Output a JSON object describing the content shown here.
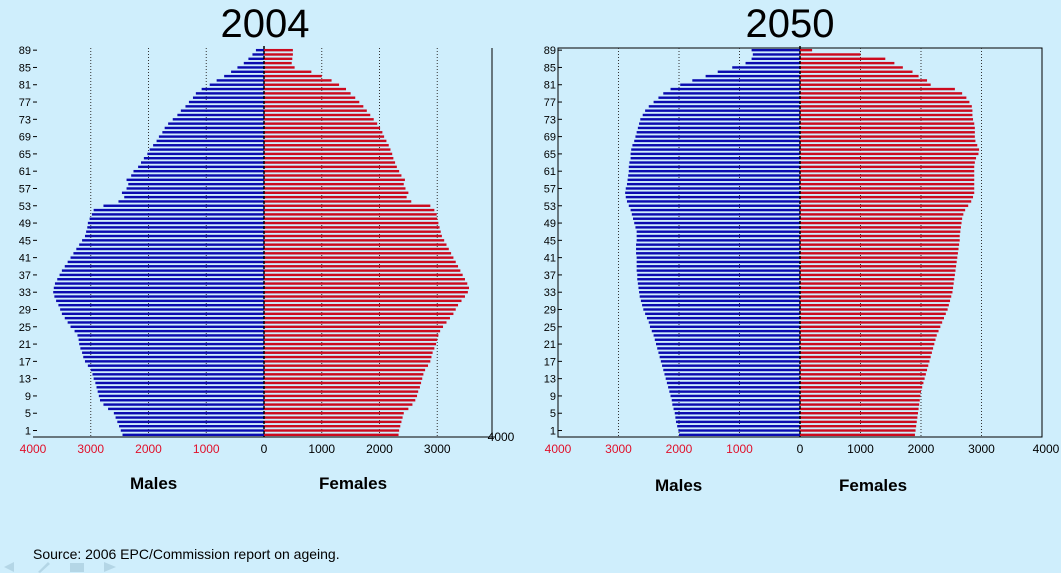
{
  "source": "Source: 2006 EPC/Commission report on ageing.",
  "chart_data": [
    {
      "type": "bar",
      "title": "2004",
      "orientation": "population-pyramid",
      "age_tick_labels": [
        "1",
        "5",
        "9",
        "13",
        "17",
        "21",
        "25",
        "29",
        "33",
        "37",
        "41",
        "45",
        "49",
        "53",
        "57",
        "61",
        "65",
        "69",
        "73",
        "77",
        "81",
        "85",
        "89"
      ],
      "left_axis_ticks": [
        "4000",
        "3000",
        "2000",
        "1000"
      ],
      "right_axis_ticks": [
        "0",
        "1000",
        "2000",
        "3000",
        "4000"
      ],
      "xlim": [
        0,
        4000
      ],
      "males_label": "Males",
      "females_label": "Females",
      "colors": {
        "males": "#0b0bb0",
        "females": "#cc0a1e",
        "left_tick": "#e0102a"
      },
      "series": [
        {
          "name": "Males",
          "ages": [
            0,
            1,
            2,
            3,
            4,
            5,
            6,
            7,
            8,
            9,
            10,
            11,
            12,
            13,
            14,
            15,
            16,
            17,
            18,
            19,
            20,
            21,
            22,
            23,
            24,
            25,
            26,
            27,
            28,
            29,
            30,
            31,
            32,
            33,
            34,
            35,
            36,
            37,
            38,
            39,
            40,
            41,
            42,
            43,
            44,
            45,
            46,
            47,
            48,
            49,
            50,
            51,
            52,
            53,
            54,
            55,
            56,
            57,
            58,
            59,
            60,
            61,
            62,
            63,
            64,
            65,
            66,
            67,
            68,
            69,
            70,
            71,
            72,
            73,
            74,
            75,
            76,
            77,
            78,
            79,
            80,
            81,
            82,
            83,
            84,
            85,
            86,
            87,
            88,
            89
          ],
          "values": [
            2450,
            2480,
            2510,
            2540,
            2570,
            2600,
            2700,
            2780,
            2840,
            2860,
            2880,
            2900,
            2920,
            2950,
            2970,
            3000,
            3050,
            3100,
            3130,
            3150,
            3180,
            3200,
            3210,
            3230,
            3280,
            3350,
            3400,
            3450,
            3500,
            3530,
            3560,
            3600,
            3630,
            3650,
            3640,
            3620,
            3580,
            3540,
            3500,
            3450,
            3400,
            3350,
            3300,
            3250,
            3200,
            3150,
            3100,
            3080,
            3060,
            3050,
            3020,
            2980,
            2950,
            2780,
            2520,
            2420,
            2460,
            2380,
            2350,
            2380,
            2300,
            2260,
            2180,
            2130,
            2080,
            2020,
            1980,
            1920,
            1860,
            1820,
            1760,
            1720,
            1660,
            1580,
            1500,
            1440,
            1360,
            1300,
            1230,
            1180,
            1080,
            940,
            820,
            690,
            570,
            460,
            350,
            270,
            200,
            140
          ]
        },
        {
          "name": "Females",
          "ages": [
            0,
            1,
            2,
            3,
            4,
            5,
            6,
            7,
            8,
            9,
            10,
            11,
            12,
            13,
            14,
            15,
            16,
            17,
            18,
            19,
            20,
            21,
            22,
            23,
            24,
            25,
            26,
            27,
            28,
            29,
            30,
            31,
            32,
            33,
            34,
            35,
            36,
            37,
            38,
            39,
            40,
            41,
            42,
            43,
            44,
            45,
            46,
            47,
            48,
            49,
            50,
            51,
            52,
            53,
            54,
            55,
            56,
            57,
            58,
            59,
            60,
            61,
            62,
            63,
            64,
            65,
            66,
            67,
            68,
            69,
            70,
            71,
            72,
            73,
            74,
            75,
            76,
            77,
            78,
            79,
            80,
            81,
            82,
            83,
            84,
            85,
            86,
            87,
            88,
            89
          ],
          "values": [
            2330,
            2340,
            2360,
            2380,
            2400,
            2420,
            2500,
            2570,
            2620,
            2650,
            2670,
            2700,
            2720,
            2740,
            2760,
            2790,
            2840,
            2880,
            2900,
            2920,
            2950,
            2980,
            3000,
            3020,
            3050,
            3100,
            3160,
            3220,
            3280,
            3320,
            3360,
            3420,
            3480,
            3530,
            3550,
            3520,
            3480,
            3440,
            3400,
            3360,
            3320,
            3280,
            3240,
            3200,
            3160,
            3120,
            3080,
            3060,
            3040,
            3020,
            3000,
            2990,
            2950,
            2880,
            2550,
            2470,
            2500,
            2450,
            2420,
            2440,
            2380,
            2340,
            2300,
            2270,
            2240,
            2220,
            2190,
            2160,
            2120,
            2080,
            2050,
            2010,
            1960,
            1900,
            1840,
            1780,
            1720,
            1650,
            1580,
            1500,
            1420,
            1300,
            1170,
            1000,
            820,
            530,
            480,
            490,
            500,
            500
          ]
        }
      ]
    },
    {
      "type": "bar",
      "title": "2050",
      "orientation": "population-pyramid",
      "age_tick_labels": [
        "1",
        "5",
        "9",
        "13",
        "17",
        "21",
        "25",
        "29",
        "33",
        "37",
        "41",
        "45",
        "49",
        "53",
        "57",
        "61",
        "65",
        "69",
        "73",
        "77",
        "81",
        "85",
        "89"
      ],
      "left_axis_ticks": [
        "4000",
        "3000",
        "2000",
        "1000"
      ],
      "right_axis_ticks": [
        "0",
        "1000",
        "2000",
        "3000",
        "4000"
      ],
      "xlim": [
        0,
        4000
      ],
      "males_label": "Males",
      "females_label": "Females",
      "colors": {
        "males": "#0b0bb0",
        "females": "#cc0a1e",
        "left_tick": "#e0102a"
      },
      "series": [
        {
          "name": "Males",
          "ages": [
            0,
            1,
            2,
            3,
            4,
            5,
            6,
            7,
            8,
            9,
            10,
            11,
            12,
            13,
            14,
            15,
            16,
            17,
            18,
            19,
            20,
            21,
            22,
            23,
            24,
            25,
            26,
            27,
            28,
            29,
            30,
            31,
            32,
            33,
            34,
            35,
            36,
            37,
            38,
            39,
            40,
            41,
            42,
            43,
            44,
            45,
            46,
            47,
            48,
            49,
            50,
            51,
            52,
            53,
            54,
            55,
            56,
            57,
            58,
            59,
            60,
            61,
            62,
            63,
            64,
            65,
            66,
            67,
            68,
            69,
            70,
            71,
            72,
            73,
            74,
            75,
            76,
            77,
            78,
            79,
            80,
            81,
            82,
            83,
            84,
            85,
            86,
            87,
            88,
            89
          ],
          "values": [
            2000,
            2010,
            2030,
            2050,
            2060,
            2070,
            2090,
            2110,
            2120,
            2140,
            2160,
            2180,
            2200,
            2220,
            2240,
            2260,
            2280,
            2300,
            2320,
            2340,
            2360,
            2380,
            2400,
            2420,
            2450,
            2480,
            2500,
            2530,
            2560,
            2590,
            2610,
            2630,
            2650,
            2660,
            2670,
            2680,
            2690,
            2690,
            2700,
            2700,
            2700,
            2700,
            2710,
            2710,
            2710,
            2700,
            2700,
            2700,
            2720,
            2740,
            2760,
            2780,
            2800,
            2830,
            2860,
            2880,
            2890,
            2880,
            2860,
            2850,
            2840,
            2830,
            2830,
            2820,
            2800,
            2800,
            2790,
            2770,
            2740,
            2720,
            2700,
            2680,
            2660,
            2640,
            2600,
            2560,
            2500,
            2420,
            2340,
            2260,
            2140,
            1980,
            1780,
            1560,
            1360,
            1120,
            900,
            800,
            780,
            800
          ]
        },
        {
          "name": "Females",
          "ages": [
            0,
            1,
            2,
            3,
            4,
            5,
            6,
            7,
            8,
            9,
            10,
            11,
            12,
            13,
            14,
            15,
            16,
            17,
            18,
            19,
            20,
            21,
            22,
            23,
            24,
            25,
            26,
            27,
            28,
            29,
            30,
            31,
            32,
            33,
            34,
            35,
            36,
            37,
            38,
            39,
            40,
            41,
            42,
            43,
            44,
            45,
            46,
            47,
            48,
            49,
            50,
            51,
            52,
            53,
            54,
            55,
            56,
            57,
            58,
            59,
            60,
            61,
            62,
            63,
            64,
            65,
            66,
            67,
            68,
            69,
            70,
            71,
            72,
            73,
            74,
            75,
            76,
            77,
            78,
            79,
            80,
            81,
            82,
            83,
            84,
            85,
            86,
            87,
            88,
            89
          ],
          "values": [
            1900,
            1910,
            1920,
            1930,
            1940,
            1950,
            1960,
            1970,
            1980,
            1990,
            2000,
            2020,
            2040,
            2060,
            2080,
            2100,
            2120,
            2140,
            2160,
            2180,
            2200,
            2220,
            2240,
            2260,
            2290,
            2320,
            2350,
            2380,
            2410,
            2440,
            2460,
            2480,
            2500,
            2520,
            2530,
            2540,
            2550,
            2560,
            2570,
            2580,
            2590,
            2600,
            2610,
            2620,
            2630,
            2640,
            2640,
            2650,
            2660,
            2670,
            2680,
            2700,
            2730,
            2780,
            2830,
            2860,
            2880,
            2880,
            2880,
            2880,
            2880,
            2880,
            2880,
            2890,
            2910,
            2950,
            2960,
            2930,
            2900,
            2890,
            2890,
            2890,
            2880,
            2860,
            2850,
            2850,
            2840,
            2800,
            2750,
            2680,
            2560,
            2160,
            2100,
            1960,
            1860,
            1700,
            1560,
            1410,
            1000,
            200
          ]
        }
      ]
    }
  ]
}
